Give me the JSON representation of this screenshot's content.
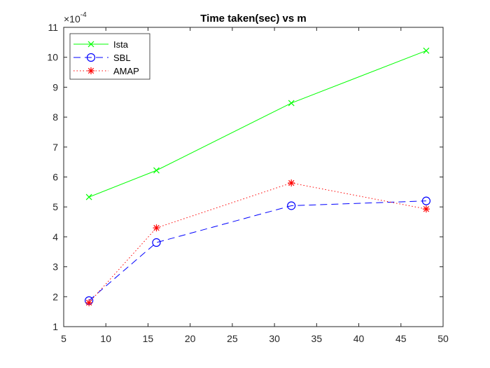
{
  "chart_data": {
    "type": "line",
    "title": "Time taken(sec) vs m",
    "xlabel": "",
    "ylabel": "",
    "y_multiplier": {
      "base": "×10",
      "exponent": "-4"
    },
    "xlim": [
      5,
      50
    ],
    "ylim": [
      1,
      11
    ],
    "xticks": [
      5,
      10,
      15,
      20,
      25,
      30,
      35,
      40,
      45,
      50
    ],
    "yticks": [
      1,
      2,
      3,
      4,
      5,
      6,
      7,
      8,
      9,
      10,
      11
    ],
    "x": [
      8,
      16,
      32,
      48
    ],
    "grid": false,
    "legend_position": "top-left",
    "series": [
      {
        "name": "Ista",
        "values": [
          5.33,
          6.22,
          8.47,
          10.22
        ],
        "color": "#00ff00",
        "line_style": "solid",
        "marker": "x"
      },
      {
        "name": "SBL",
        "values": [
          1.87,
          3.81,
          5.04,
          5.2
        ],
        "color": "#0000ff",
        "line_style": "dashed",
        "marker": "circle"
      },
      {
        "name": "AMAP",
        "values": [
          1.8,
          4.3,
          5.8,
          4.93
        ],
        "color": "#ff0000",
        "line_style": "dotted",
        "marker": "asterisk"
      }
    ]
  }
}
